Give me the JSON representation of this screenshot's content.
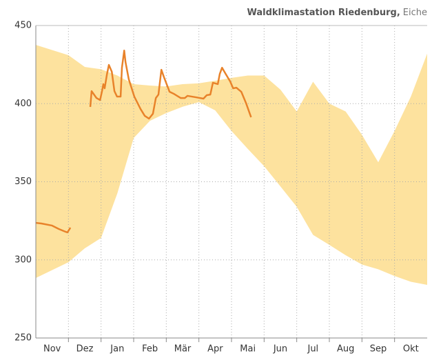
{
  "chart_data": {
    "type": "band-line",
    "title": "Waldklimastation Riedenburg,",
    "subtitle": "Eiche",
    "categories": [
      "Nov",
      "Dez",
      "Jan",
      "Feb",
      "Mär",
      "Apr",
      "Mai",
      "Jun",
      "Jul",
      "Aug",
      "Sep",
      "Okt"
    ],
    "xlim": [
      0,
      12
    ],
    "xticks": [
      1,
      2,
      3,
      4,
      5,
      6,
      7,
      8,
      9,
      10,
      11
    ],
    "ylim": [
      250,
      450
    ],
    "yticks": [
      250,
      300,
      350,
      400,
      450
    ],
    "grid": true,
    "band": {
      "color": "#fde29e",
      "x": [
        0,
        1,
        1.5,
        2,
        2.5,
        3,
        3.5,
        4,
        4.5,
        5,
        5.5,
        6,
        6.5,
        7,
        7.5,
        8,
        8.5,
        9,
        9.5,
        10,
        10.5,
        11,
        11.5,
        12
      ],
      "upper": [
        437.6,
        431,
        423.5,
        422,
        418,
        412.5,
        411.6,
        411,
        412.5,
        413,
        414.7,
        416.5,
        418,
        418,
        409,
        395,
        414,
        400,
        395,
        380,
        362.5,
        382.5,
        404.5,
        432
      ],
      "lower": [
        288.4,
        298.5,
        307.4,
        314,
        342.6,
        378,
        389,
        394,
        398,
        401,
        395.7,
        382.5,
        371,
        360,
        347,
        334,
        316,
        309.6,
        303,
        297,
        294,
        289.7,
        286,
        284
      ]
    },
    "series": [
      {
        "color": "#e8822a",
        "x": [
          0,
          0.17,
          0.49,
          0.7,
          0.91,
          0.97,
          1.06,
          1.3,
          1.67,
          1.71,
          1.86,
          1.97,
          2.03,
          2.07,
          2.11,
          2.18,
          2.24,
          2.33,
          2.41,
          2.49,
          2.6,
          2.64,
          2.71,
          2.75,
          2.85,
          3.02,
          3.21,
          3.34,
          3.47,
          3.59,
          3.68,
          3.76,
          3.85,
          3.93,
          4.1,
          4.23,
          4.44,
          4.57,
          4.65,
          4.93,
          5.14,
          5.24,
          5.35,
          5.43,
          5.58,
          5.64,
          5.71,
          5.83,
          5.96,
          6.05,
          6.15,
          6.3,
          6.45,
          6.6
        ],
        "values": [
          323.7,
          323.3,
          322,
          319.8,
          318,
          317.6,
          320.6,
          null,
          397.9,
          408,
          403.6,
          402.3,
          408,
          412.5,
          409.8,
          418.7,
          424.8,
          420.4,
          408,
          404.5,
          404.5,
          423,
          434,
          426.6,
          415.6,
          404.5,
          396.6,
          392.2,
          390.4,
          393.5,
          403.6,
          405.8,
          421.7,
          416.9,
          407.6,
          406.3,
          403.6,
          403.6,
          405,
          404,
          403.2,
          405.4,
          405.8,
          413.4,
          412.5,
          419,
          423,
          418.7,
          414.2,
          409.8,
          410.2,
          407.6,
          400.1,
          391.3
        ]
      }
    ]
  }
}
